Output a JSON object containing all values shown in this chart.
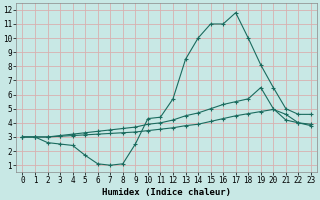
{
  "xlabel": "Humidex (Indice chaleur)",
  "background_color": "#c8e8e5",
  "grid_color": "#d8b0b0",
  "line_color": "#1a6b5e",
  "xlim": [
    -0.5,
    23.5
  ],
  "ylim": [
    0.5,
    12.5
  ],
  "xticks": [
    0,
    1,
    2,
    3,
    4,
    5,
    6,
    7,
    8,
    9,
    10,
    11,
    12,
    13,
    14,
    15,
    16,
    17,
    18,
    19,
    20,
    21,
    22,
    23
  ],
  "yticks": [
    1,
    2,
    3,
    4,
    5,
    6,
    7,
    8,
    9,
    10,
    11,
    12
  ],
  "line1_x": [
    0,
    1,
    2,
    3,
    4,
    5,
    6,
    7,
    8,
    9,
    10,
    11,
    12,
    13,
    14,
    15,
    16,
    17,
    18,
    19,
    20,
    21,
    22,
    23
  ],
  "line1_y": [
    3.0,
    3.0,
    2.6,
    2.5,
    2.4,
    1.7,
    1.1,
    1.0,
    1.1,
    2.5,
    4.3,
    4.4,
    5.7,
    8.5,
    10.0,
    11.0,
    11.0,
    11.8,
    10.0,
    8.1,
    6.5,
    5.0,
    4.6,
    4.6
  ],
  "line2_x": [
    0,
    1,
    2,
    3,
    4,
    5,
    6,
    7,
    8,
    9,
    10,
    11,
    12,
    13,
    14,
    15,
    16,
    17,
    18,
    19,
    20,
    21,
    22,
    23
  ],
  "line2_y": [
    3.0,
    3.0,
    3.0,
    3.1,
    3.2,
    3.3,
    3.4,
    3.5,
    3.6,
    3.7,
    3.9,
    4.0,
    4.2,
    4.5,
    4.7,
    5.0,
    5.3,
    5.5,
    5.7,
    6.5,
    5.0,
    4.2,
    4.0,
    3.8
  ],
  "line3_x": [
    0,
    1,
    2,
    3,
    4,
    5,
    6,
    7,
    8,
    9,
    10,
    11,
    12,
    13,
    14,
    15,
    16,
    17,
    18,
    19,
    20,
    21,
    22,
    23
  ],
  "line3_y": [
    3.0,
    3.0,
    3.0,
    3.05,
    3.1,
    3.15,
    3.2,
    3.25,
    3.3,
    3.35,
    3.45,
    3.55,
    3.65,
    3.8,
    3.9,
    4.1,
    4.3,
    4.5,
    4.65,
    4.8,
    4.95,
    4.6,
    4.0,
    3.9
  ],
  "marker": "+",
  "markersize": 3,
  "linewidth": 0.8,
  "tick_fontsize": 5.5,
  "xlabel_fontsize": 6.5
}
